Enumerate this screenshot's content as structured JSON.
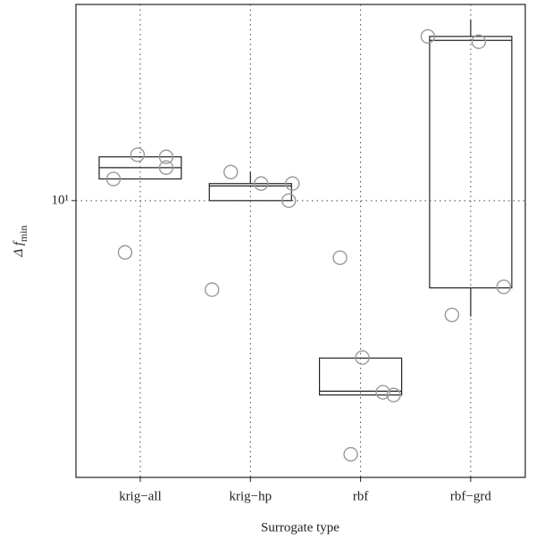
{
  "chart_data": {
    "type": "box",
    "x_label": "Surrogate type",
    "y_label": {
      "main": "Δ f",
      "sub": "min"
    },
    "categories": [
      "krig−all",
      "krig−hp",
      "rbf",
      "rbf−grd"
    ],
    "q1": [
      10.9,
      10,
      4.62,
      7.07
    ],
    "median": [
      11.4,
      10.6,
      4.69,
      18.9
    ],
    "q3": [
      11.9,
      10.7,
      5.35,
      19.2
    ],
    "whisker_low": [
      null,
      null,
      null,
      6.31
    ],
    "whisker_high": [
      null,
      11.2,
      null,
      20.5
    ],
    "points": [
      [
        10.9,
        8.14,
        12.0,
        11.9,
        11.4
      ],
      [
        7.02,
        11.2,
        10.7,
        10,
        10.7
      ],
      [
        7.97,
        3.65,
        5.36,
        4.67,
        4.62
      ],
      [
        19.2,
        6.35,
        18.8,
        7.1
      ]
    ],
    "log_y": true,
    "ylim": [
      3.33,
      21.8
    ],
    "yticks": [
      {
        "value": 10,
        "label": "10¹"
      }
    ],
    "grid": true
  }
}
